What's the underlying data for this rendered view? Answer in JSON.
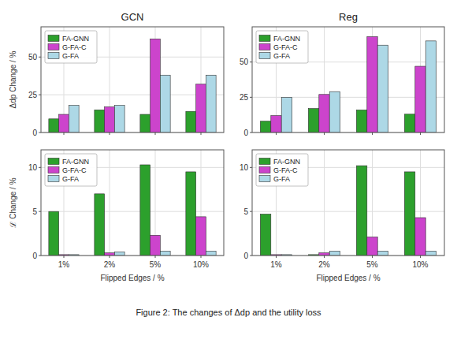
{
  "title": "Figure 2: The changes of Δdp and the utility loss",
  "chart_data": [
    {
      "type": "bar",
      "title": "GCN",
      "y_label": "Δdp Change / %",
      "categories": [
        "1%",
        "2%",
        "5%",
        "10%"
      ],
      "series": [
        {
          "name": "FA-GNN",
          "color": "#2ca02c",
          "values": [
            9,
            15,
            12,
            14
          ]
        },
        {
          "name": "G-FA-C",
          "color": "#cc44cc",
          "values": [
            12,
            17,
            62,
            32
          ]
        },
        {
          "name": "G-FA",
          "color": "#add8e6",
          "values": [
            18,
            18,
            38,
            38
          ]
        }
      ],
      "ylim": [
        0,
        70
      ],
      "yticks": [
        0,
        25,
        50
      ],
      "grid": true,
      "legend": "upper left",
      "tick_labels": "y"
    },
    {
      "type": "bar",
      "title": "Reg",
      "categories": [
        "1%",
        "2%",
        "5%",
        "10%"
      ],
      "series": [
        {
          "name": "FA-GNN",
          "color": "#2ca02c",
          "values": [
            8,
            17,
            16,
            13
          ]
        },
        {
          "name": "G-FA-C",
          "color": "#cc44cc",
          "values": [
            12,
            27,
            68,
            47
          ]
        },
        {
          "name": "G-FA",
          "color": "#add8e6",
          "values": [
            25,
            29,
            62,
            65
          ]
        }
      ],
      "ylim": [
        0,
        75
      ],
      "yticks": [
        0,
        25,
        50
      ],
      "grid": true,
      "legend": "upper left",
      "tick_labels": "y"
    },
    {
      "type": "bar",
      "x_label": "Flipped Edges / %",
      "y_label": "ℒ Change / %",
      "categories": [
        "1%",
        "2%",
        "5%",
        "10%"
      ],
      "series": [
        {
          "name": "FA-GNN",
          "color": "#2ca02c",
          "values": [
            5.0,
            7.0,
            10.3,
            9.5
          ]
        },
        {
          "name": "G-FA-C",
          "color": "#cc44cc",
          "values": [
            0.1,
            0.3,
            2.3,
            4.4
          ]
        },
        {
          "name": "G-FA",
          "color": "#add8e6",
          "values": [
            0.1,
            0.4,
            0.5,
            0.5
          ]
        }
      ],
      "ylim": [
        0,
        12
      ],
      "yticks": [
        0,
        5,
        10
      ],
      "grid": true,
      "legend": "upper left"
    },
    {
      "type": "bar",
      "x_label": "Flipped Edges / %",
      "categories": [
        "1%",
        "2%",
        "5%",
        "10%"
      ],
      "series": [
        {
          "name": "FA-GNN",
          "color": "#2ca02c",
          "values": [
            4.7,
            0.1,
            10.2,
            9.5
          ]
        },
        {
          "name": "G-FA-C",
          "color": "#cc44cc",
          "values": [
            0.1,
            0.3,
            2.1,
            4.3
          ]
        },
        {
          "name": "G-FA",
          "color": "#add8e6",
          "values": [
            0.1,
            0.5,
            0.5,
            0.5
          ]
        }
      ],
      "ylim": [
        0,
        12
      ],
      "yticks": [
        0,
        5,
        10
      ],
      "grid": true,
      "legend": "upper left"
    }
  ]
}
